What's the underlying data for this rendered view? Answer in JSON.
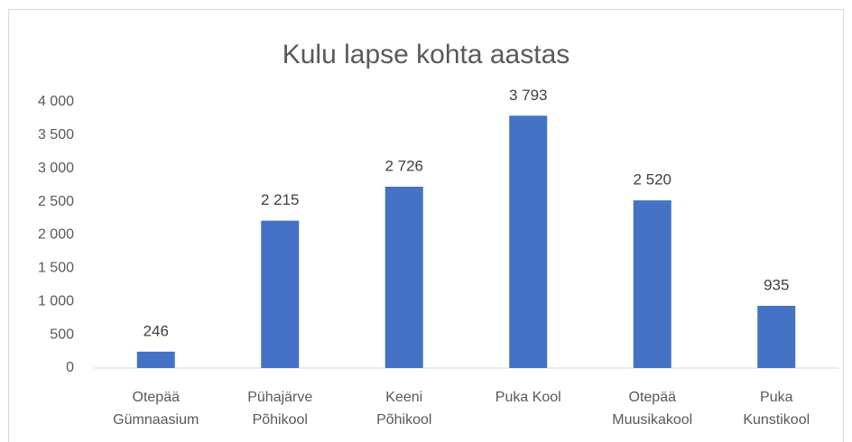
{
  "chart_data": {
    "type": "bar",
    "title": "Kulu lapse kohta aastas",
    "categories": [
      [
        "Otepää",
        "Gümnaasium"
      ],
      [
        "Pühajärve",
        "Põhikool"
      ],
      [
        "Keeni",
        "Põhikool"
      ],
      [
        "Puka Kool"
      ],
      [
        "Otepää",
        "Muusikakool"
      ],
      [
        "Puka",
        "Kunstikool"
      ]
    ],
    "values": [
      246,
      2215,
      2726,
      3793,
      2520,
      935
    ],
    "value_labels": [
      "246",
      "2 215",
      "2 726",
      "3 793",
      "2 520",
      "935"
    ],
    "color": "#4472c4",
    "ylim": [
      0,
      4000
    ],
    "yticks": [
      0,
      500,
      {
        "value": 1000,
        "label": "1 000"
      },
      {
        "value": 1500,
        "label": "1 500"
      },
      {
        "value": 2000,
        "label": "2 000"
      },
      {
        "value": 2500,
        "label": "2 500"
      },
      {
        "value": 3000,
        "label": "3 000"
      },
      {
        "value": 3500,
        "label": "3 500"
      },
      {
        "value": 4000,
        "label": "4 000"
      }
    ],
    "grid": false
  }
}
